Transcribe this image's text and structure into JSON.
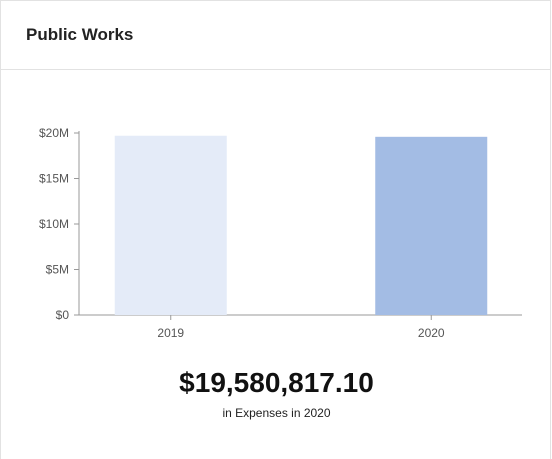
{
  "card": {
    "title": "Public Works"
  },
  "chart_data": {
    "type": "bar",
    "categories": [
      "2019",
      "2020"
    ],
    "values": [
      19700000,
      19580817.1
    ],
    "ylim": [
      0,
      20000000
    ],
    "yticks": [
      {
        "value": 0,
        "label": "$0"
      },
      {
        "value": 5000000,
        "label": "$5M"
      },
      {
        "value": 10000000,
        "label": "$10M"
      },
      {
        "value": 15000000,
        "label": "$15M"
      },
      {
        "value": 20000000,
        "label": "$20M"
      }
    ],
    "bar_colors": [
      "#e4ebf8",
      "#a3bce4"
    ],
    "grid": false,
    "title": "",
    "xlabel": "",
    "ylabel": ""
  },
  "summary": {
    "value": "$19,580,817.10",
    "caption": "in Expenses in 2020"
  }
}
